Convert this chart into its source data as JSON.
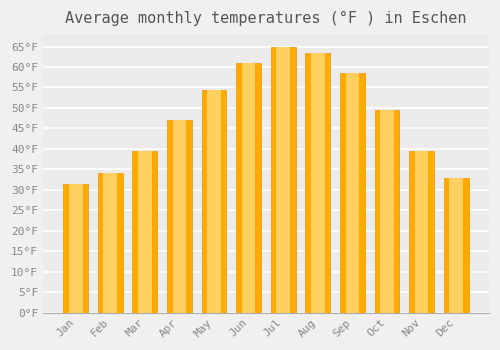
{
  "title": "Average monthly temperatures (°F ) in Eschen",
  "months": [
    "Jan",
    "Feb",
    "Mar",
    "Apr",
    "May",
    "Jun",
    "Jul",
    "Aug",
    "Sep",
    "Oct",
    "Nov",
    "Dec"
  ],
  "values": [
    31.5,
    34.0,
    39.5,
    47.0,
    54.5,
    61.0,
    65.0,
    63.5,
    58.5,
    49.5,
    39.5,
    33.0
  ],
  "bar_color_main": "#FFAA00",
  "bar_color_light": "#FFD060",
  "bar_edge_color": "#E8950A",
  "background_color": "#F0F0F0",
  "plot_bg_color": "#EBEBEB",
  "grid_color": "#FFFFFF",
  "text_color": "#888888",
  "title_color": "#555555",
  "ylim": [
    0,
    68
  ],
  "yticks": [
    0,
    5,
    10,
    15,
    20,
    25,
    30,
    35,
    40,
    45,
    50,
    55,
    60,
    65
  ],
  "ytick_labels": [
    "0°F",
    "5°F",
    "10°F",
    "15°F",
    "20°F",
    "25°F",
    "30°F",
    "35°F",
    "40°F",
    "45°F",
    "50°F",
    "55°F",
    "60°F",
    "65°F"
  ],
  "title_fontsize": 11,
  "tick_fontsize": 8,
  "font_family": "monospace",
  "bar_width": 0.72
}
